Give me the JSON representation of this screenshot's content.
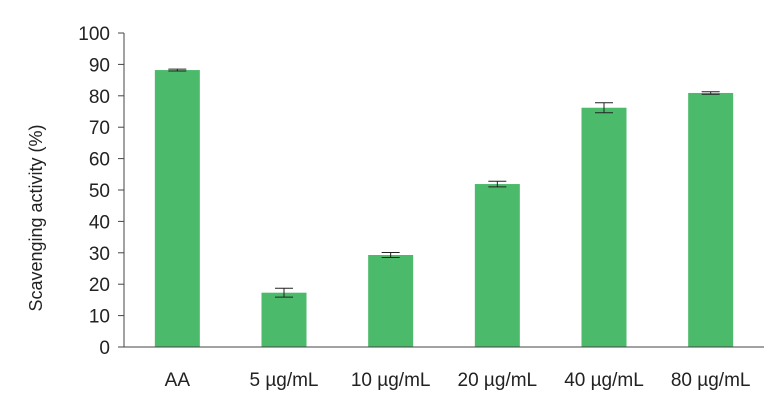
{
  "chart_data": {
    "type": "bar",
    "title": "",
    "xlabel": "",
    "ylabel": "Scavenging activity (%)",
    "ylim": [
      0,
      100
    ],
    "yticks": [
      0,
      10,
      20,
      30,
      40,
      50,
      60,
      70,
      80,
      90,
      100
    ],
    "categories": [
      "AA",
      "5 µg/mL",
      "10 µg/mL",
      "20 µg/mL",
      "40 µg/mL",
      "80 µg/mL"
    ],
    "values": [
      88.2,
      17.3,
      29.3,
      51.9,
      76.2,
      80.9
    ],
    "errors": [
      0.3,
      1.4,
      0.8,
      0.9,
      1.6,
      0.4
    ],
    "bar_color": "#4cba6b",
    "grid": false,
    "legend": "none"
  }
}
